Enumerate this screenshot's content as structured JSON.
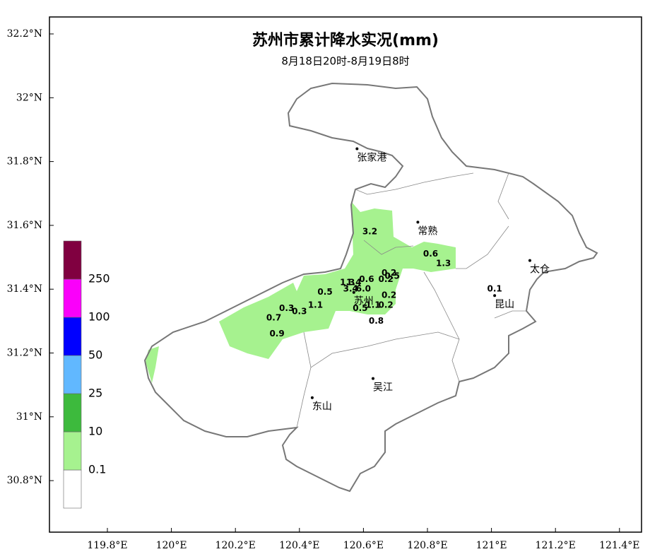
{
  "title": "苏州市累计降水实况(mm)",
  "subtitle": "8月18日20时-8月19日8时",
  "lat_ticks": [
    {
      "value": 30.8,
      "label": "30.8°N"
    },
    {
      "value": 31,
      "label": "31°N"
    },
    {
      "value": 31.2,
      "label": "31.2°N"
    },
    {
      "value": 31.4,
      "label": "31.4°N"
    },
    {
      "value": 31.6,
      "label": "31.6°N"
    },
    {
      "value": 31.8,
      "label": "31.8°N"
    },
    {
      "value": 32,
      "label": "32°N"
    },
    {
      "value": 32.2,
      "label": "32.2°N"
    }
  ],
  "lon_ticks": [
    {
      "value": 119.8,
      "label": "119.8°E"
    },
    {
      "value": 120,
      "label": "120°E"
    },
    {
      "value": 120.2,
      "label": "120.2°E"
    },
    {
      "value": 120.4,
      "label": "120.4°E"
    },
    {
      "value": 120.6,
      "label": "120.6°E"
    },
    {
      "value": 120.8,
      "label": "120.8°E"
    },
    {
      "value": 121,
      "label": "121°E"
    },
    {
      "value": 121.2,
      "label": "121.2°E"
    },
    {
      "value": 121.4,
      "label": "121.4°E"
    }
  ],
  "legend": {
    "levels": [
      0.1,
      10,
      25,
      50,
      100,
      250
    ],
    "colors": [
      "#ffffff",
      "#a6f28f",
      "#3dba3d",
      "#61b8ff",
      "#0000ff",
      "#fa00fa",
      "#800040"
    ]
  },
  "cities": [
    {
      "name": "张家港",
      "lon": 120.58,
      "lat": 31.84
    },
    {
      "name": "常熟",
      "lon": 120.77,
      "lat": 31.61
    },
    {
      "name": "太仓",
      "lon": 121.12,
      "lat": 31.49
    },
    {
      "name": "昆山",
      "lon": 121.01,
      "lat": 31.38
    },
    {
      "name": "苏州",
      "lon": 120.57,
      "lat": 31.39
    },
    {
      "name": "吴江",
      "lon": 120.63,
      "lat": 31.12
    },
    {
      "name": "东山",
      "lon": 120.44,
      "lat": 31.06
    }
  ],
  "stations": [
    {
      "value": 3.2,
      "lon": 120.62,
      "lat": 31.58
    },
    {
      "value": 0.6,
      "lon": 120.81,
      "lat": 31.51
    },
    {
      "value": 1.3,
      "lon": 120.85,
      "lat": 31.48
    },
    {
      "value": 0.2,
      "lon": 120.68,
      "lat": 31.45
    },
    {
      "value": 0.2,
      "lon": 120.67,
      "lat": 31.43
    },
    {
      "value": 0.5,
      "lon": 120.69,
      "lat": 31.44
    },
    {
      "value": 0.6,
      "lon": 120.61,
      "lat": 31.43
    },
    {
      "value": 1.3,
      "lon": 120.55,
      "lat": 31.42
    },
    {
      "value": 1.4,
      "lon": 120.57,
      "lat": 31.42
    },
    {
      "value": 3.4,
      "lon": 120.56,
      "lat": 31.4
    },
    {
      "value": 6,
      "label": "6.0",
      "lon": 120.6,
      "lat": 31.4
    },
    {
      "value": 0.5,
      "lon": 120.48,
      "lat": 31.39
    },
    {
      "value": 0.2,
      "lon": 120.68,
      "lat": 31.38
    },
    {
      "value": 1.1,
      "lon": 120.45,
      "lat": 31.35
    },
    {
      "value": 0.3,
      "lon": 120.36,
      "lat": 31.34
    },
    {
      "value": 0.3,
      "lon": 120.4,
      "lat": 31.33
    },
    {
      "value": 0.7,
      "lon": 120.32,
      "lat": 31.31
    },
    {
      "value": 0.5,
      "lon": 120.59,
      "lat": 31.34
    },
    {
      "value": 1.1,
      "lon": 120.63,
      "lat": 31.35
    },
    {
      "value": 0.2,
      "lon": 120.67,
      "lat": 31.35
    },
    {
      "value": 0.8,
      "lon": 120.64,
      "lat": 31.3
    },
    {
      "value": 0.9,
      "lon": 120.33,
      "lat": 31.26
    },
    {
      "value": 0.1,
      "lon": 121.01,
      "lat": 31.4
    }
  ]
}
